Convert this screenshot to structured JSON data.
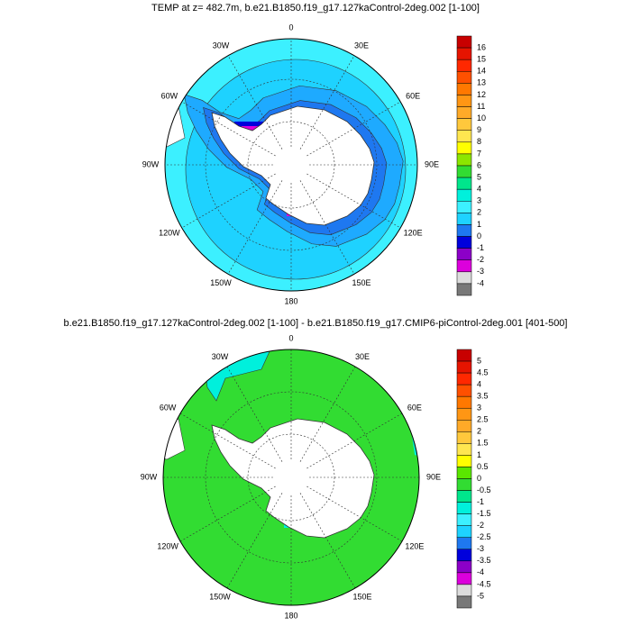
{
  "panels": [
    {
      "title": "TEMP at z= 482.7m, b.e21.B1850.f19_g17.127kaControl-2deg.002 [1-100]",
      "lon_labels": [
        "0",
        "30E",
        "60E",
        "90E",
        "120E",
        "150E",
        "180",
        "150W",
        "120W",
        "90W",
        "60W",
        "30W"
      ],
      "colorbar": {
        "labels": [
          "16",
          "15",
          "14",
          "13",
          "12",
          "11",
          "10",
          "9",
          "8",
          "7",
          "6",
          "5",
          "4",
          "3",
          "2",
          "1",
          "0",
          "-1",
          "-2",
          "-3",
          "-4"
        ],
        "colors": [
          "#c80000",
          "#e61400",
          "#ff2800",
          "#ff5000",
          "#ff7800",
          "#ff9614",
          "#ffaa28",
          "#ffc83c",
          "#ffe650",
          "#ffff00",
          "#8ce600",
          "#32dc32",
          "#00e68c",
          "#00f0dc",
          "#3cf0ff",
          "#1ed2ff",
          "#1eaaff",
          "#1e78f0",
          "#0000dc",
          "#8c00c8",
          "#dc00dc",
          "#dcdcdc",
          "#787878"
        ]
      }
    },
    {
      "title": "b.e21.B1850.f19_g17.127kaControl-2deg.002 [1-100] - b.e21.B1850.f19_g17.CMIP6-piControl-2deg.001 [401-500]",
      "lon_labels": [
        "0",
        "30E",
        "60E",
        "90E",
        "120E",
        "150E",
        "180",
        "150W",
        "120W",
        "90W",
        "60W",
        "30W"
      ],
      "colorbar": {
        "labels": [
          "5",
          "4.5",
          "4",
          "3.5",
          "3",
          "2.5",
          "2",
          "1.5",
          "1",
          "0.5",
          "0",
          "-0.5",
          "-1",
          "-1.5",
          "-2",
          "-2.5",
          "-3",
          "-3.5",
          "-4",
          "-4.5",
          "-5"
        ],
        "colors": [
          "#c80000",
          "#e61400",
          "#ff2800",
          "#ff5000",
          "#ff7800",
          "#ff9614",
          "#ffaa28",
          "#ffc83c",
          "#ffe650",
          "#ffff00",
          "#5ae600",
          "#32dc32",
          "#00e68c",
          "#00f0dc",
          "#3cf0ff",
          "#1ed2ff",
          "#1eaaff",
          "#1e78f0",
          "#0000dc",
          "#8c00c8",
          "#dc00dc",
          "#dcdcdc",
          "#787878"
        ]
      }
    }
  ]
}
